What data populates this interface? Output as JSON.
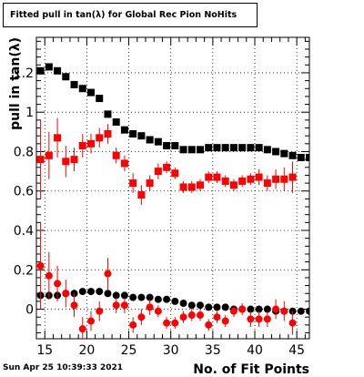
{
  "title": "Fitted pull in tan(λ) for Global Rec Pion NoHits",
  "footer": "Sun Apr 25 10:39:33 2021",
  "chart_data": {
    "type": "scatter",
    "xlabel": "No. of Fit Points",
    "ylabel": "pull in tan(λ)",
    "xlim": [
      14,
      46.5
    ],
    "ylim": [
      -0.15,
      1.38
    ],
    "x_ticks": [
      "15",
      "20",
      "25",
      "30",
      "35",
      "40",
      "45"
    ],
    "y_ticks": [
      "0",
      "0.2",
      "0.4",
      "0.6",
      "0.8",
      "1",
      "1.2"
    ],
    "grid": true,
    "colors": {
      "black": "#000000",
      "red": "#ff0000"
    },
    "series": [
      {
        "marker": "square",
        "color": "#000000",
        "points": [
          [
            14.5,
            1.21,
            0
          ],
          [
            15.5,
            1.23,
            0
          ],
          [
            16.5,
            1.21,
            0
          ],
          [
            17.5,
            1.18,
            0
          ],
          [
            18.5,
            1.14,
            0
          ],
          [
            19.5,
            1.12,
            0
          ],
          [
            20.5,
            1.1,
            0
          ],
          [
            21.5,
            1.07,
            0
          ],
          [
            22.5,
            0.99,
            0
          ],
          [
            23.5,
            0.95,
            0
          ],
          [
            24.5,
            0.91,
            0
          ],
          [
            25.5,
            0.89,
            0
          ],
          [
            26.5,
            0.88,
            0
          ],
          [
            27.5,
            0.86,
            0
          ],
          [
            28.5,
            0.85,
            0
          ],
          [
            29.5,
            0.83,
            0
          ],
          [
            30.5,
            0.83,
            0
          ],
          [
            31.5,
            0.81,
            0
          ],
          [
            32.5,
            0.81,
            0
          ],
          [
            33.5,
            0.81,
            0
          ],
          [
            34.5,
            0.82,
            0
          ],
          [
            35.5,
            0.82,
            0
          ],
          [
            36.5,
            0.82,
            0
          ],
          [
            37.5,
            0.82,
            0
          ],
          [
            38.5,
            0.82,
            0
          ],
          [
            39.5,
            0.82,
            0
          ],
          [
            40.5,
            0.82,
            0
          ],
          [
            41.5,
            0.81,
            0
          ],
          [
            42.5,
            0.8,
            0
          ],
          [
            43.5,
            0.79,
            0
          ],
          [
            44.5,
            0.78,
            0
          ],
          [
            45.5,
            0.77,
            0
          ],
          [
            46.5,
            0.77,
            0
          ]
        ]
      },
      {
        "marker": "square",
        "color": "#ff0000",
        "points": [
          [
            14.5,
            0.76,
            0.2
          ],
          [
            15.5,
            0.78,
            0.12
          ],
          [
            16.5,
            0.87,
            0.1
          ],
          [
            17.5,
            0.75,
            0.08
          ],
          [
            18.5,
            0.76,
            0.06
          ],
          [
            19.5,
            0.83,
            0.06
          ],
          [
            20.5,
            0.84,
            0.05
          ],
          [
            21.5,
            0.87,
            0.05
          ],
          [
            22.5,
            0.89,
            0.05
          ],
          [
            23.5,
            0.78,
            0.04
          ],
          [
            24.5,
            0.74,
            0.04
          ],
          [
            25.5,
            0.64,
            0.05
          ],
          [
            26.5,
            0.58,
            0.05
          ],
          [
            27.5,
            0.64,
            0.04
          ],
          [
            28.5,
            0.7,
            0.04
          ],
          [
            29.5,
            0.72,
            0.03
          ],
          [
            30.5,
            0.69,
            0.03
          ],
          [
            31.5,
            0.62,
            0.03
          ],
          [
            32.5,
            0.62,
            0.03
          ],
          [
            33.5,
            0.63,
            0.03
          ],
          [
            34.5,
            0.67,
            0.03
          ],
          [
            35.5,
            0.67,
            0.03
          ],
          [
            36.5,
            0.65,
            0.03
          ],
          [
            37.5,
            0.63,
            0.03
          ],
          [
            38.5,
            0.65,
            0.03
          ],
          [
            39.5,
            0.66,
            0.03
          ],
          [
            40.5,
            0.67,
            0.04
          ],
          [
            41.5,
            0.64,
            0.04
          ],
          [
            42.5,
            0.66,
            0.05
          ],
          [
            43.5,
            0.66,
            0.06
          ],
          [
            44.5,
            0.67,
            0.08
          ]
        ]
      },
      {
        "marker": "circle",
        "color": "#000000",
        "points": [
          [
            14.5,
            0.07,
            0.02
          ],
          [
            15.5,
            0.07,
            0.02
          ],
          [
            16.5,
            0.07,
            0.02
          ],
          [
            17.5,
            0.08,
            0.02
          ],
          [
            18.5,
            0.08,
            0.02
          ],
          [
            19.5,
            0.09,
            0.015
          ],
          [
            20.5,
            0.09,
            0.015
          ],
          [
            21.5,
            0.09,
            0.015
          ],
          [
            22.5,
            0.08,
            0.015
          ],
          [
            23.5,
            0.07,
            0.01
          ],
          [
            24.5,
            0.07,
            0.01
          ],
          [
            25.5,
            0.06,
            0.01
          ],
          [
            26.5,
            0.06,
            0.01
          ],
          [
            27.5,
            0.06,
            0.01
          ],
          [
            28.5,
            0.05,
            0.01
          ],
          [
            29.5,
            0.05,
            0.01
          ],
          [
            30.5,
            0.04,
            0.01
          ],
          [
            31.5,
            0.03,
            0.01
          ],
          [
            32.5,
            0.02,
            0.01
          ],
          [
            33.5,
            0.02,
            0.01
          ],
          [
            34.5,
            0.01,
            0.01
          ],
          [
            35.5,
            0.01,
            0.01
          ],
          [
            36.5,
            0.01,
            0.01
          ],
          [
            37.5,
            0.0,
            0.01
          ],
          [
            38.5,
            0.0,
            0.01
          ],
          [
            39.5,
            0.0,
            0.01
          ],
          [
            40.5,
            0.0,
            0.01
          ],
          [
            41.5,
            0.0,
            0.01
          ],
          [
            42.5,
            -0.01,
            0.01
          ],
          [
            43.5,
            -0.01,
            0.01
          ],
          [
            44.5,
            -0.01,
            0.01
          ],
          [
            45.5,
            -0.01,
            0.01
          ],
          [
            46.5,
            -0.01,
            0.01
          ]
        ]
      },
      {
        "marker": "circle",
        "color": "#ff0000",
        "points": [
          [
            14.5,
            0.22,
            0.22
          ],
          [
            15.5,
            0.17,
            0.12
          ],
          [
            16.5,
            0.13,
            0.09
          ],
          [
            17.5,
            0.08,
            0.07
          ],
          [
            18.5,
            0.02,
            0.06
          ],
          [
            19.5,
            -0.1,
            0.06
          ],
          [
            20.5,
            -0.06,
            0.05
          ],
          [
            21.5,
            -0.01,
            0.05
          ],
          [
            22.5,
            0.18,
            0.08
          ],
          [
            23.5,
            0.02,
            0.04
          ],
          [
            24.5,
            0.02,
            0.04
          ],
          [
            25.5,
            -0.08,
            0.04
          ],
          [
            26.5,
            -0.04,
            0.04
          ],
          [
            27.5,
            0.01,
            0.04
          ],
          [
            28.5,
            -0.01,
            0.03
          ],
          [
            29.5,
            -0.07,
            0.03
          ],
          [
            30.5,
            -0.07,
            0.03
          ],
          [
            31.5,
            -0.04,
            0.03
          ],
          [
            32.5,
            -0.03,
            0.03
          ],
          [
            33.5,
            -0.03,
            0.03
          ],
          [
            34.5,
            -0.08,
            0.03
          ],
          [
            35.5,
            -0.04,
            0.03
          ],
          [
            36.5,
            -0.06,
            0.03
          ],
          [
            37.5,
            -0.01,
            0.03
          ],
          [
            38.5,
            0.0,
            0.03
          ],
          [
            39.5,
            -0.05,
            0.04
          ],
          [
            40.5,
            -0.05,
            0.04
          ],
          [
            41.5,
            -0.05,
            0.04
          ],
          [
            42.5,
            0.0,
            0.05
          ],
          [
            43.5,
            -0.01,
            0.05
          ],
          [
            44.5,
            -0.07,
            0.06
          ]
        ]
      }
    ]
  }
}
